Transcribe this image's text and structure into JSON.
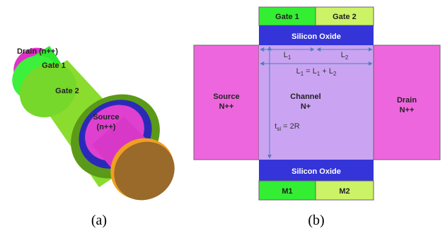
{
  "panel_a": {
    "labels": {
      "drain": "Drain (n++)",
      "gate1": "Gate 1",
      "gate2": "Gate 2",
      "source": [
        "Source",
        "(n++)"
      ]
    },
    "caption": "(a)"
  },
  "panel_b": {
    "gate1": "Gate 1",
    "gate2": "Gate 2",
    "oxide_top": "Silicon Oxide",
    "oxide_bottom": "Silicon Oxide",
    "length1": [
      "L",
      "1"
    ],
    "length2": [
      "L",
      "2"
    ],
    "length_total": [
      "L",
      "1",
      " = L",
      "1",
      " + L",
      "2"
    ],
    "thickness": [
      "t",
      "si",
      " = 2R"
    ],
    "source": [
      "Source",
      "N++"
    ],
    "channel": [
      "Channel",
      "N+"
    ],
    "drain": [
      "Drain",
      "N++"
    ],
    "m1": "M1",
    "m2": "M2",
    "caption": "(b)"
  }
}
